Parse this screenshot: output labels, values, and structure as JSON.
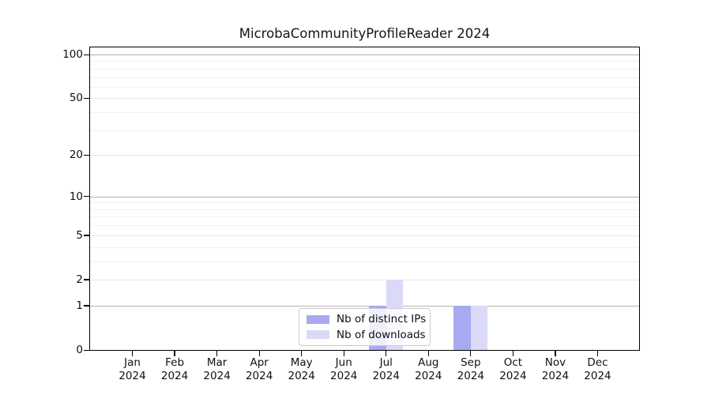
{
  "colors": {
    "series_distinct_ips": "#a9a9f1",
    "series_downloads": "#dadaf8",
    "grid_decade": "#b3b3b3",
    "grid_labeled": "#e7e7e7",
    "grid_minor": "#f1f1f1",
    "spine": "#000000",
    "text": "#111111",
    "legend_border": "#cccccc"
  },
  "chart_data": {
    "type": "bar",
    "title": "MicrobaCommunityProfileReader 2024",
    "categories": [
      "Jan",
      "Feb",
      "Mar",
      "Apr",
      "May",
      "Jun",
      "Jul",
      "Aug",
      "Sep",
      "Oct",
      "Nov",
      "Dec"
    ],
    "x_year_label": "2024",
    "series": [
      {
        "name": "Nb of distinct IPs",
        "color": "#a9a9f1",
        "values": [
          0,
          0,
          0,
          0,
          0,
          0,
          1,
          0,
          1,
          0,
          0,
          0
        ]
      },
      {
        "name": "Nb of downloads",
        "color": "#dadaf8",
        "values": [
          0,
          0,
          0,
          0,
          0,
          0,
          2,
          0,
          1,
          0,
          0,
          0
        ]
      }
    ],
    "yscale": "log1p",
    "ylim": [
      0,
      114
    ],
    "y_ticks": [
      0,
      1,
      2,
      5,
      10,
      20,
      50,
      100
    ],
    "y_decade_ticks": [
      1,
      10,
      100
    ],
    "y_minor_gridlines": [
      3,
      4,
      6,
      7,
      8,
      9,
      30,
      40,
      60,
      70,
      80,
      90
    ],
    "grid": true,
    "legend": {
      "position": "lower center",
      "entries": [
        "Nb of distinct IPs",
        "Nb of downloads"
      ]
    }
  }
}
